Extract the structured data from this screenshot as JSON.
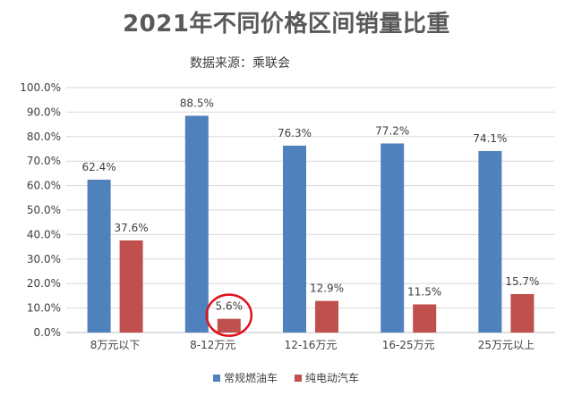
{
  "chart_data": {
    "type": "bar",
    "title": "2021年不同价格区间销量比重",
    "subtitle": "数据来源：乘联会",
    "categories": [
      "8万元以下",
      "8-12万元",
      "12-16万元",
      "16-25万元",
      "25万元以上"
    ],
    "series": [
      {
        "name": "常规燃油车",
        "color": "#4F81BD",
        "values": [
          62.4,
          88.5,
          76.3,
          77.2,
          74.1
        ],
        "labels": [
          "62.4%",
          "88.5%",
          "76.3%",
          "77.2%",
          "74.1%"
        ]
      },
      {
        "name": "纯电动汽车",
        "color": "#C0504D",
        "values": [
          37.6,
          5.6,
          12.9,
          11.5,
          15.7
        ],
        "labels": [
          "37.6%",
          "5.6%",
          "12.9%",
          "11.5%",
          "15.7%"
        ]
      }
    ],
    "y_ticks": [
      "0.0%",
      "10.0%",
      "20.0%",
      "30.0%",
      "40.0%",
      "50.0%",
      "60.0%",
      "70.0%",
      "80.0%",
      "90.0%",
      "100.0%"
    ],
    "ylim": [
      0,
      100
    ],
    "grid": true,
    "legend": "bottom",
    "annotation": {
      "type": "circle",
      "target": "8-12万元 纯电动汽车 5.6%",
      "color": "#E0101A"
    }
  }
}
